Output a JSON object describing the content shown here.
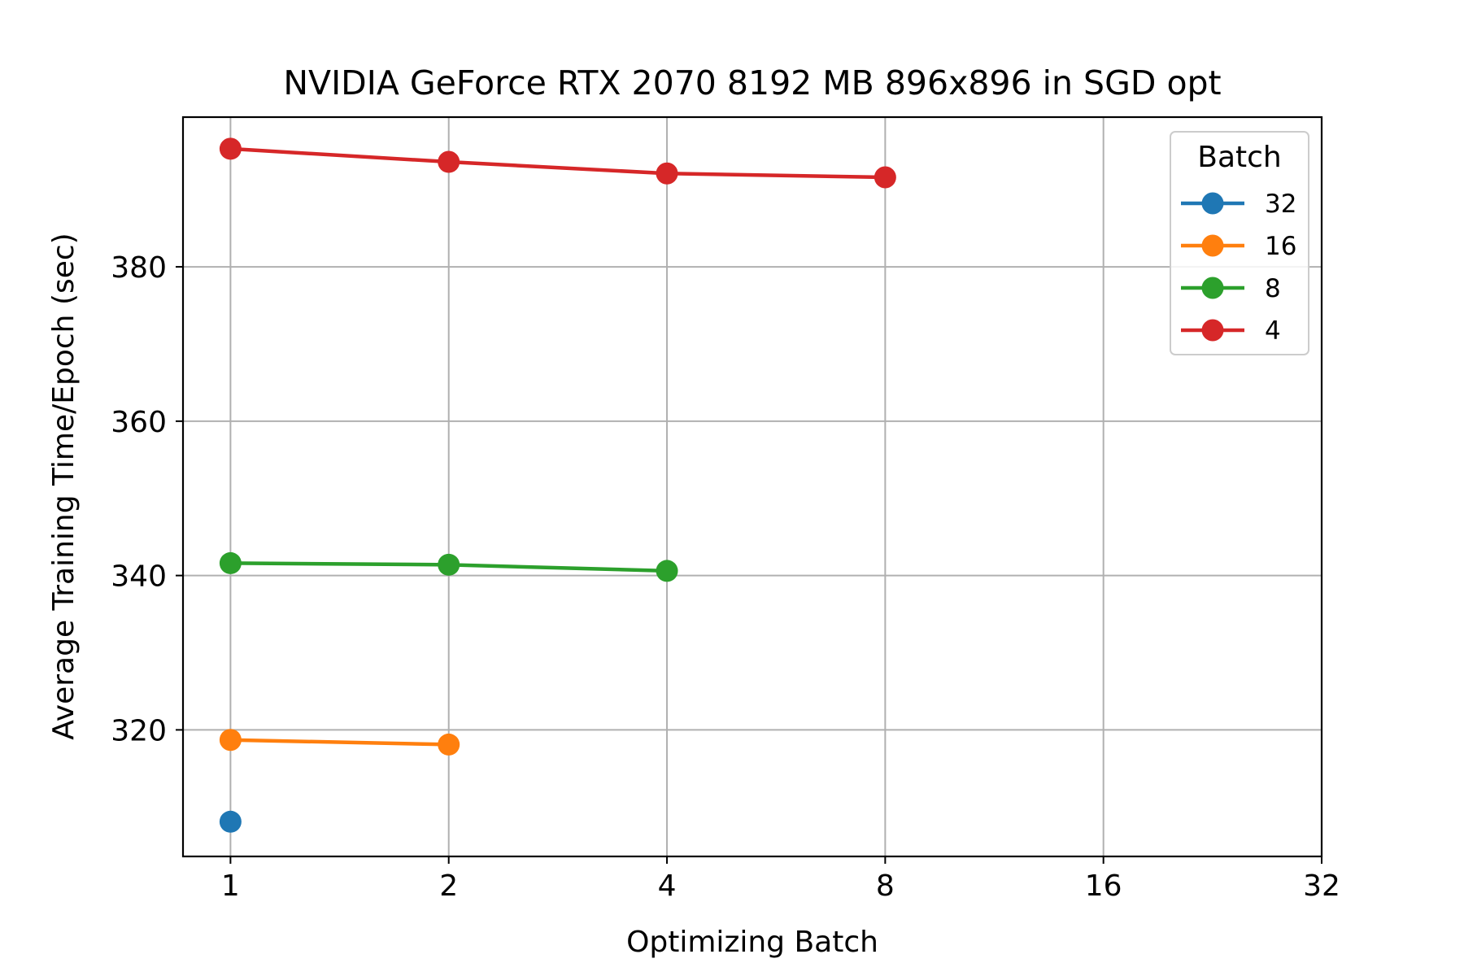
{
  "chart_data": {
    "type": "line",
    "title": "NVIDIA GeForce RTX 2070 8192 MB 896x896 in SGD opt",
    "xlabel": "Optimizing Batch",
    "ylabel": "Average Training Time/Epoch (sec)",
    "x_scale": "log2",
    "x_ticks": [
      1,
      2,
      4,
      8,
      16,
      32
    ],
    "x_tick_labels": [
      "1",
      "2",
      "4",
      "8",
      "16",
      "32"
    ],
    "xlim": [
      0.86,
      32
    ],
    "y_ticks": [
      320,
      340,
      360,
      380
    ],
    "y_tick_labels": [
      "320",
      "340",
      "360",
      "380"
    ],
    "ylim": [
      303.6,
      399.4
    ],
    "grid": true,
    "legend": {
      "title": "Batch",
      "placement": "top-right"
    },
    "series": [
      {
        "name": "32",
        "color": "#1f77b4",
        "x": [
          1
        ],
        "y": [
          308.1
        ]
      },
      {
        "name": "16",
        "color": "#ff7f0e",
        "x": [
          1,
          2
        ],
        "y": [
          318.7,
          318.1
        ]
      },
      {
        "name": "8",
        "color": "#2ca02c",
        "x": [
          1,
          2,
          4
        ],
        "y": [
          341.6,
          341.4,
          340.6
        ]
      },
      {
        "name": "4",
        "color": "#d62728",
        "x": [
          1,
          2,
          4,
          8
        ],
        "y": [
          395.3,
          393.6,
          392.1,
          391.6
        ]
      }
    ]
  }
}
